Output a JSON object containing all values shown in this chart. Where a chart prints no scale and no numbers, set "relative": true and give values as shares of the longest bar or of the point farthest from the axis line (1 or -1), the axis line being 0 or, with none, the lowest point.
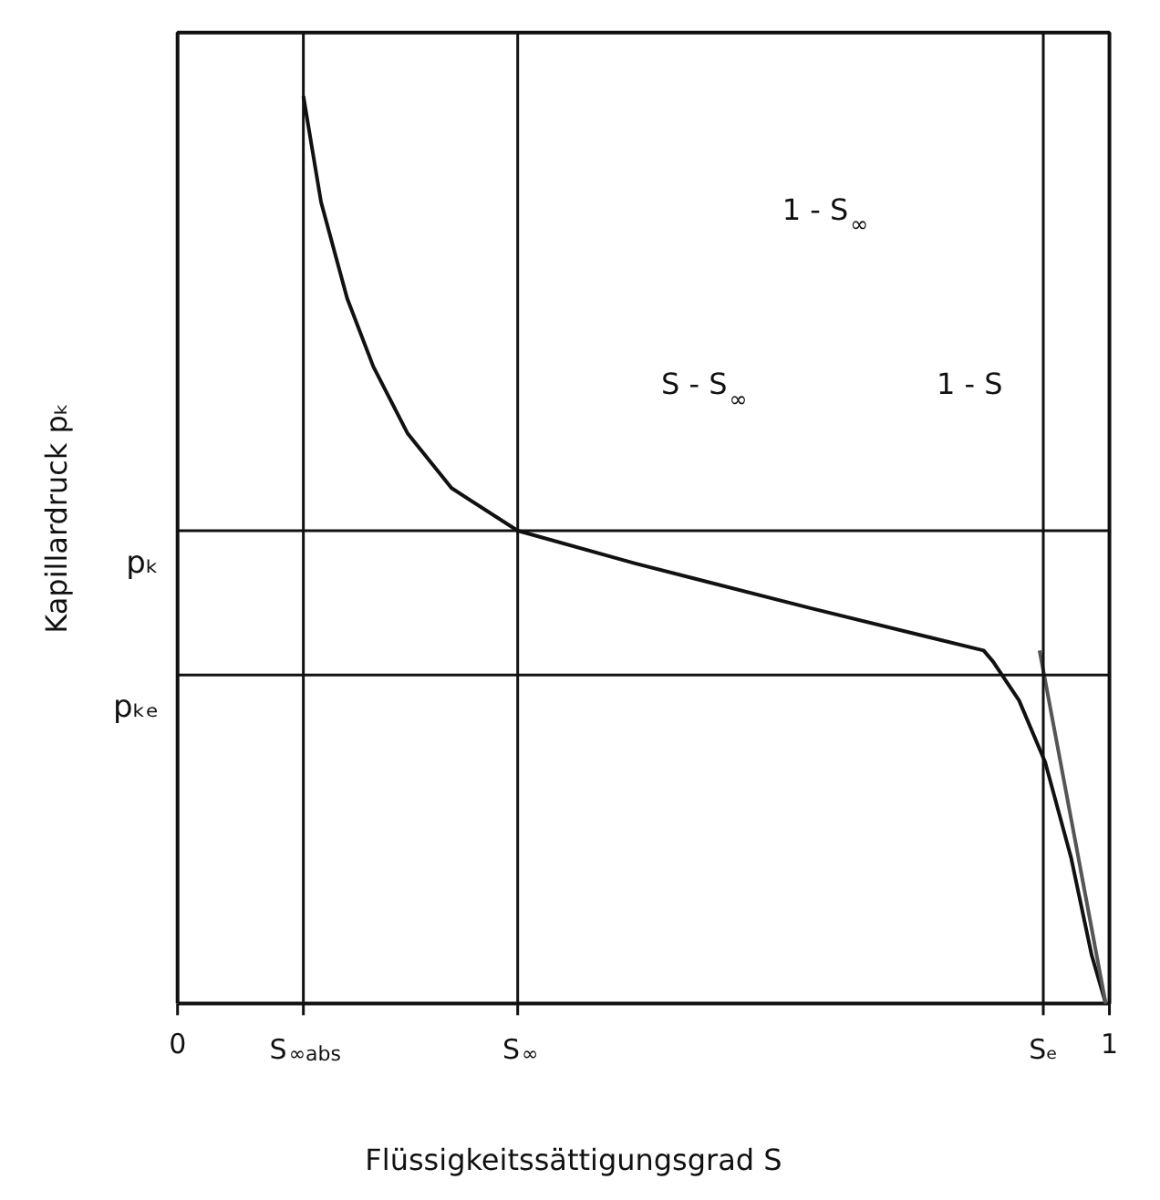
{
  "chart_data": {
    "type": "line",
    "relative": true,
    "xlabel": "Flüssigkeitssättigungsgrad S",
    "ylabel": "Kapillardruck pₖ",
    "xlim": [
      0,
      1
    ],
    "xticks": [
      0,
      {
        "value": 0.135,
        "label": "S$_{∞abs}$"
      },
      {
        "value": 0.365,
        "label": "S$_{∞}$"
      },
      {
        "value": 0.929,
        "label": "Sₑ"
      },
      1
    ],
    "series": [
      {
        "color": "#111111",
        "x": [
          0.135,
          0.154,
          0.182,
          0.21,
          0.247,
          0.294,
          0.365,
          0.491,
          0.678,
          0.865,
          0.875,
          0.903,
          0.931,
          0.959,
          0.981,
          0.996
        ],
        "values": [
          1.0,
          0.883,
          0.777,
          0.702,
          0.628,
          0.568,
          0.521,
          0.485,
          0.436,
          0.389,
          0.377,
          0.334,
          0.266,
          0.16,
          0.053,
          0.0
        ]
      },
      {
        "color": "#555555",
        "x": [
          0.925,
          0.996
        ],
        "values": [
          0.389,
          0.0
        ]
      }
    ],
    "ref_lines": [
      {
        "axis": "y",
        "value": 0.521,
        "label": "pₖ"
      },
      {
        "axis": "y",
        "value": 0.362,
        "label": "pₖₑ"
      },
      {
        "axis": "x",
        "value": 0.135
      },
      {
        "axis": "x",
        "value": 0.365
      },
      {
        "axis": "x",
        "value": 0.929
      }
    ],
    "annotations": [
      "1 - S$_{∞}$",
      "S - S$_{∞}$",
      "1 - S"
    ],
    "line_style": "solid",
    "marker": "none"
  }
}
